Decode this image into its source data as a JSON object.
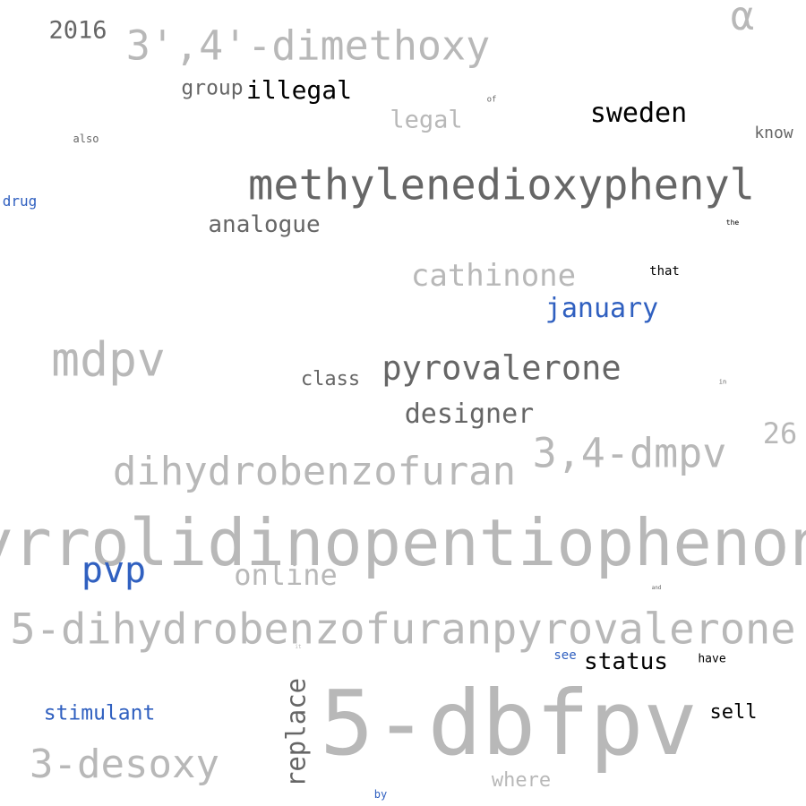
{
  "colors": {
    "background": "#ffffff",
    "black": "#000000",
    "dark_gray": "#666666",
    "light_gray": "#b8b8b8",
    "blue": "#3060c0"
  },
  "words": [
    {
      "text": "pyrrolidinopentiophenone",
      "weight": 72,
      "color": "#b8b8b8"
    },
    {
      "text": "5-dbfpv",
      "weight": 100,
      "color": "#b8b8b8"
    },
    {
      "text": "5-dihydrobenzofuranpyrovalerone",
      "weight": 55,
      "color": "#b8b8b8"
    },
    {
      "text": "methylenedioxyphenyl",
      "weight": 60,
      "color": "#666666"
    },
    {
      "text": "dihydrobenzofuran",
      "weight": 50,
      "color": "#b8b8b8"
    },
    {
      "text": "mdpv",
      "weight": 55,
      "color": "#b8b8b8"
    },
    {
      "text": "3',4'-dimethoxy",
      "weight": 50,
      "color": "#b8b8b8"
    },
    {
      "text": "3,4-dmpv",
      "weight": 48,
      "color": "#b8b8b8"
    },
    {
      "text": "3-desoxy",
      "weight": 48,
      "color": "#b8b8b8"
    },
    {
      "text": "pyrovalerone",
      "weight": 40,
      "color": "#666666"
    },
    {
      "text": "cathinone",
      "weight": 35,
      "color": "#b8b8b8"
    },
    {
      "text": "pvp",
      "weight": 38,
      "color": "#3060c0"
    },
    {
      "text": "sweden",
      "weight": 33,
      "color": "#000000"
    },
    {
      "text": "replace",
      "weight": 30,
      "color": "#666666"
    },
    {
      "text": "designer",
      "weight": 30,
      "color": "#666666"
    },
    {
      "text": "january",
      "weight": 30,
      "color": "#3060c0"
    },
    {
      "text": "online",
      "weight": 30,
      "color": "#b8b8b8"
    },
    {
      "text": "illegal",
      "weight": 28,
      "color": "#000000"
    },
    {
      "text": "analogue",
      "weight": 26,
      "color": "#666666"
    },
    {
      "text": "status",
      "weight": 26,
      "color": "#000000"
    },
    {
      "text": "2016",
      "weight": 28,
      "color": "#666666"
    },
    {
      "text": "26",
      "weight": 30,
      "color": "#b8b8b8"
    },
    {
      "text": "α",
      "weight": 40,
      "color": "#b8b8b8"
    },
    {
      "text": "legal",
      "weight": 26,
      "color": "#b8b8b8"
    },
    {
      "text": "where",
      "weight": 22,
      "color": "#b8b8b8"
    },
    {
      "text": "stimulant",
      "weight": 22,
      "color": "#3060c0"
    },
    {
      "text": "group",
      "weight": 22,
      "color": "#666666"
    },
    {
      "text": "class",
      "weight": 22,
      "color": "#666666"
    },
    {
      "text": "sell",
      "weight": 22,
      "color": "#000000"
    },
    {
      "text": "know",
      "weight": 18,
      "color": "#666666"
    },
    {
      "text": "drug",
      "weight": 16,
      "color": "#3060c0"
    },
    {
      "text": "that",
      "weight": 14,
      "color": "#000000"
    },
    {
      "text": "see",
      "weight": 14,
      "color": "#3060c0"
    },
    {
      "text": "have",
      "weight": 13,
      "color": "#000000"
    },
    {
      "text": "also",
      "weight": 12,
      "color": "#666666"
    },
    {
      "text": "by",
      "weight": 12,
      "color": "#3060c0"
    },
    {
      "text": "of",
      "weight": 9,
      "color": "#666666"
    },
    {
      "text": "the",
      "weight": 8,
      "color": "#000000"
    },
    {
      "text": "in",
      "weight": 7,
      "color": "#666666"
    },
    {
      "text": "and",
      "weight": 6,
      "color": "#666666"
    },
    {
      "text": "it",
      "weight": 6,
      "color": "#b8b8b8"
    }
  ]
}
